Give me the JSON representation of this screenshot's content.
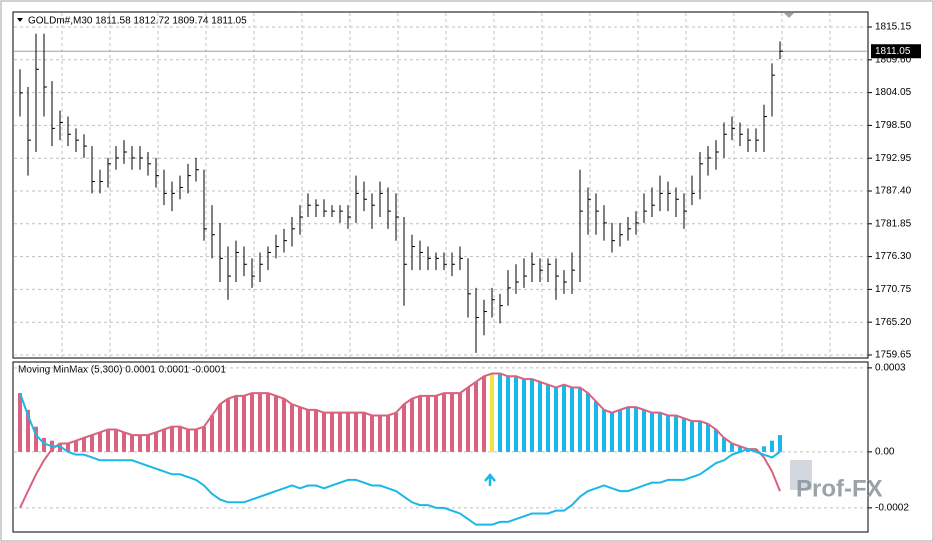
{
  "chart_data": [
    {
      "type": "ohlc",
      "title": "GOLDm#,M30  1811.58 1812.72 1809.74 1811.05",
      "color": "#000000",
      "grid": true,
      "ylim": [
        1759.14,
        1817.69
      ],
      "yticks": [
        1815.15,
        {
          "value": 1809.6,
          "label": "1809.60"
        },
        1804.05,
        {
          "value": 1798.5,
          "label": "1798.50"
        },
        1792.95,
        {
          "value": 1787.4,
          "label": "1787.40"
        },
        1781.85,
        {
          "value": 1776.3,
          "label": "1776.30"
        },
        1770.75,
        {
          "value": 1765.2,
          "label": "1765.20"
        },
        1759.65
      ],
      "last_price": 1811.05,
      "high": [
        1808,
        1805,
        1814,
        1814,
        1806,
        1801,
        1800,
        1798,
        1797,
        1795,
        1791,
        1793,
        1795,
        1796,
        1795,
        1795,
        1794,
        1793,
        1791,
        1789,
        1790,
        1792,
        1793,
        1791,
        1785,
        1782,
        1778,
        1779,
        1778,
        1776,
        1777,
        1778,
        1780,
        1781,
        1783,
        1785,
        1787,
        1786,
        1786,
        1785,
        1785,
        1785,
        1790,
        1789,
        1787,
        1789,
        1788,
        1787,
        1783,
        1780,
        1779,
        1778,
        1777,
        1777,
        1777,
        1778,
        1776,
        1771,
        1769,
        1771,
        1770,
        1774,
        1775,
        1776,
        1777,
        1776,
        1776,
        1776,
        1774,
        1777,
        1791,
        1788,
        1787,
        1785,
        1782,
        1782,
        1783,
        1784,
        1787,
        1788,
        1790,
        1789,
        1788,
        1787,
        1790,
        1794,
        1795,
        1796,
        1799,
        1800,
        1799,
        1798,
        1798,
        1802,
        1809,
        1812.72
      ],
      "low": [
        1800,
        1790,
        1794,
        1800,
        1795,
        1796,
        1795,
        1794,
        1793,
        1787,
        1787,
        1788,
        1791,
        1792,
        1791,
        1791,
        1790,
        1788,
        1785,
        1784,
        1786,
        1787,
        1789,
        1779,
        1776,
        1772,
        1769,
        1772,
        1773,
        1771,
        1772,
        1774,
        1776,
        1777,
        1778,
        1780,
        1783,
        1783,
        1783,
        1783,
        1782,
        1781,
        1782,
        1784,
        1781,
        1783,
        1781,
        1779,
        1768,
        1774,
        1774,
        1774,
        1774,
        1774,
        1773,
        1774,
        1766,
        1760,
        1763,
        1766,
        1765,
        1768,
        1770,
        1771,
        1772,
        1772,
        1772,
        1769,
        1770,
        1770,
        1772,
        1780,
        1780,
        1779,
        1777,
        1778,
        1779,
        1780,
        1782,
        1783,
        1784,
        1784,
        1783,
        1781,
        1785,
        1786,
        1790,
        1791,
        1793,
        1796,
        1795,
        1794,
        1794,
        1794,
        1800,
        1809.74
      ],
      "close": [
        1804,
        1796,
        1808,
        1805,
        1798,
        1799,
        1797,
        1796,
        1795,
        1789,
        1789,
        1792,
        1793,
        1794,
        1793,
        1793,
        1792,
        1790,
        1787,
        1787,
        1788,
        1790,
        1791,
        1781,
        1780,
        1776,
        1773,
        1777,
        1775,
        1773,
        1775,
        1777,
        1778,
        1779,
        1781,
        1783,
        1785,
        1785,
        1784,
        1784,
        1784,
        1783,
        1787,
        1786,
        1785,
        1787,
        1784,
        1783,
        1775,
        1778,
        1777,
        1776,
        1776,
        1775,
        1775,
        1776,
        1770,
        1766,
        1767,
        1769,
        1768,
        1771,
        1772,
        1773,
        1775,
        1774,
        1775,
        1773,
        1772,
        1774,
        1784,
        1786,
        1784,
        1782,
        1779,
        1780,
        1781,
        1782,
        1784,
        1785,
        1787,
        1787,
        1786,
        1784,
        1787,
        1792,
        1793,
        1794,
        1797,
        1798,
        1797,
        1796,
        1796,
        1800,
        1807,
        1811.05
      ]
    },
    {
      "type": "oscillator",
      "title": "Moving MinMax (5,300) 0.0001 0.0001 -0.0001",
      "grid": true,
      "ylim": [
        -0.000279,
        0.000321
      ],
      "yticks": [
        0.0003,
        {
          "value": 0,
          "label": "0.00"
        },
        -0.0002
      ],
      "histogram": {
        "values": [
          0.00021,
          0.00015,
          9e-05,
          5e-05,
          4e-05,
          3e-05,
          3e-05,
          4e-05,
          5e-05,
          6e-05,
          7e-05,
          8e-05,
          8e-05,
          7e-05,
          6e-05,
          6e-05,
          6e-05,
          7e-05,
          8e-05,
          9e-05,
          9e-05,
          8e-05,
          8e-05,
          9e-05,
          0.00013,
          0.00017,
          0.00019,
          0.0002,
          0.0002,
          0.00021,
          0.00021,
          0.00021,
          0.0002,
          0.00019,
          0.00017,
          0.00016,
          0.00015,
          0.00015,
          0.00014,
          0.00014,
          0.00014,
          0.00014,
          0.00014,
          0.00014,
          0.00013,
          0.00013,
          0.00013,
          0.00014,
          0.00017,
          0.00019,
          0.0002,
          0.0002,
          0.0002,
          0.00021,
          0.00021,
          0.00021,
          0.00023,
          0.00025,
          0.00027,
          0.00028,
          0.00028,
          0.00027,
          0.00027,
          0.00026,
          0.00026,
          0.00025,
          0.00024,
          0.00023,
          0.00024,
          0.00023,
          0.00023,
          0.00021,
          0.00018,
          0.00015,
          0.00014,
          0.00015,
          0.00016,
          0.00016,
          0.00015,
          0.00014,
          0.00014,
          0.00013,
          0.00013,
          0.00012,
          0.00011,
          0.00011,
          0.0001,
          8e-05,
          5e-05,
          3e-05,
          2e-05,
          1e-05,
          1e-05,
          2e-05,
          4e-05,
          6e-05
        ],
        "colors": [
          "#d9627e",
          "#d9627e",
          "#d9627e",
          "#d9627e",
          "#d9627e",
          "#d9627e",
          "#d9627e",
          "#d9627e",
          "#d9627e",
          "#d9627e",
          "#d9627e",
          "#d9627e",
          "#d9627e",
          "#d9627e",
          "#d9627e",
          "#d9627e",
          "#d9627e",
          "#d9627e",
          "#d9627e",
          "#d9627e",
          "#d9627e",
          "#d9627e",
          "#d9627e",
          "#d9627e",
          "#d9627e",
          "#d9627e",
          "#d9627e",
          "#d9627e",
          "#d9627e",
          "#d9627e",
          "#d9627e",
          "#d9627e",
          "#d9627e",
          "#d9627e",
          "#d9627e",
          "#d9627e",
          "#d9627e",
          "#d9627e",
          "#d9627e",
          "#d9627e",
          "#d9627e",
          "#d9627e",
          "#d9627e",
          "#d9627e",
          "#d9627e",
          "#d9627e",
          "#d9627e",
          "#d9627e",
          "#d9627e",
          "#d9627e",
          "#d9627e",
          "#d9627e",
          "#d9627e",
          "#d9627e",
          "#d9627e",
          "#d9627e",
          "#d9627e",
          "#d9627e",
          "#d9627e",
          "#f0e442",
          "#1ab8e8",
          "#1ab8e8",
          "#1ab8e8",
          "#1ab8e8",
          "#1ab8e8",
          "#1ab8e8",
          "#1ab8e8",
          "#1ab8e8",
          "#1ab8e8",
          "#1ab8e8",
          "#1ab8e8",
          "#1ab8e8",
          "#1ab8e8",
          "#1ab8e8",
          "#1ab8e8",
          "#1ab8e8",
          "#1ab8e8",
          "#1ab8e8",
          "#1ab8e8",
          "#1ab8e8",
          "#1ab8e8",
          "#1ab8e8",
          "#1ab8e8",
          "#1ab8e8",
          "#1ab8e8",
          "#1ab8e8",
          "#1ab8e8",
          "#1ab8e8",
          "#1ab8e8",
          "#1ab8e8",
          "#1ab8e8",
          "#1ab8e8",
          "#1ab8e8",
          "#1ab8e8",
          "#1ab8e8",
          "#1ab8e8"
        ]
      },
      "series": [
        {
          "color": "#d9627e",
          "values": [
            -0.0002,
            -0.00014,
            -8e-05,
            -3e-05,
            1e-05,
            3e-05,
            3e-05,
            4e-05,
            5e-05,
            6e-05,
            7e-05,
            8e-05,
            8e-05,
            7e-05,
            6e-05,
            6e-05,
            6e-05,
            7e-05,
            8e-05,
            9e-05,
            9e-05,
            8e-05,
            8e-05,
            9e-05,
            0.00013,
            0.00017,
            0.00019,
            0.0002,
            0.0002,
            0.00021,
            0.00021,
            0.00021,
            0.0002,
            0.00019,
            0.00017,
            0.00016,
            0.00015,
            0.00015,
            0.00014,
            0.00014,
            0.00014,
            0.00014,
            0.00014,
            0.00014,
            0.00013,
            0.00013,
            0.00013,
            0.00014,
            0.00017,
            0.00019,
            0.0002,
            0.0002,
            0.0002,
            0.00021,
            0.00021,
            0.00021,
            0.00023,
            0.00025,
            0.00027,
            0.00028,
            0.00028,
            0.00027,
            0.00027,
            0.00026,
            0.00026,
            0.00025,
            0.00024,
            0.00023,
            0.00024,
            0.00023,
            0.00023,
            0.00021,
            0.00018,
            0.00015,
            0.00014,
            0.00015,
            0.00016,
            0.00016,
            0.00015,
            0.00014,
            0.00014,
            0.00013,
            0.00013,
            0.00012,
            0.00011,
            0.00011,
            0.0001,
            8e-05,
            5e-05,
            3e-05,
            2e-05,
            1e-05,
            1e-05,
            -2e-05,
            -7e-05,
            -0.00014
          ]
        },
        {
          "color": "#1ab8e8",
          "values": [
            0.00021,
            0.00013,
            6e-05,
            3e-05,
            2e-05,
            2e-05,
            0,
            -1e-05,
            -1e-05,
            -2e-05,
            -3e-05,
            -3e-05,
            -3e-05,
            -3e-05,
            -3e-05,
            -4e-05,
            -5e-05,
            -6e-05,
            -7e-05,
            -8e-05,
            -8e-05,
            -9e-05,
            -0.0001,
            -0.00012,
            -0.00015,
            -0.00017,
            -0.00018,
            -0.00018,
            -0.00018,
            -0.00017,
            -0.00016,
            -0.00015,
            -0.00014,
            -0.00013,
            -0.00012,
            -0.00013,
            -0.00012,
            -0.00012,
            -0.00013,
            -0.00012,
            -0.00011,
            -0.0001,
            -0.0001,
            -0.00011,
            -0.00012,
            -0.00012,
            -0.00013,
            -0.00014,
            -0.00016,
            -0.00018,
            -0.00019,
            -0.00019,
            -0.0002,
            -0.0002,
            -0.00021,
            -0.00022,
            -0.00024,
            -0.00026,
            -0.00026,
            -0.00026,
            -0.00025,
            -0.00025,
            -0.00024,
            -0.00023,
            -0.00022,
            -0.00022,
            -0.00022,
            -0.00021,
            -0.00021,
            -0.00019,
            -0.00016,
            -0.00014,
            -0.00013,
            -0.00012,
            -0.00013,
            -0.00014,
            -0.00014,
            -0.00013,
            -0.00012,
            -0.00011,
            -0.00011,
            -0.0001,
            -0.0001,
            -0.0001,
            -9e-05,
            -8e-05,
            -6e-05,
            -4e-05,
            -3e-05,
            -1e-05,
            0,
            1e-05,
            0,
            -1e-05,
            -2e-05,
            0
          ]
        }
      ]
    }
  ],
  "watermark": "Prof-FX"
}
